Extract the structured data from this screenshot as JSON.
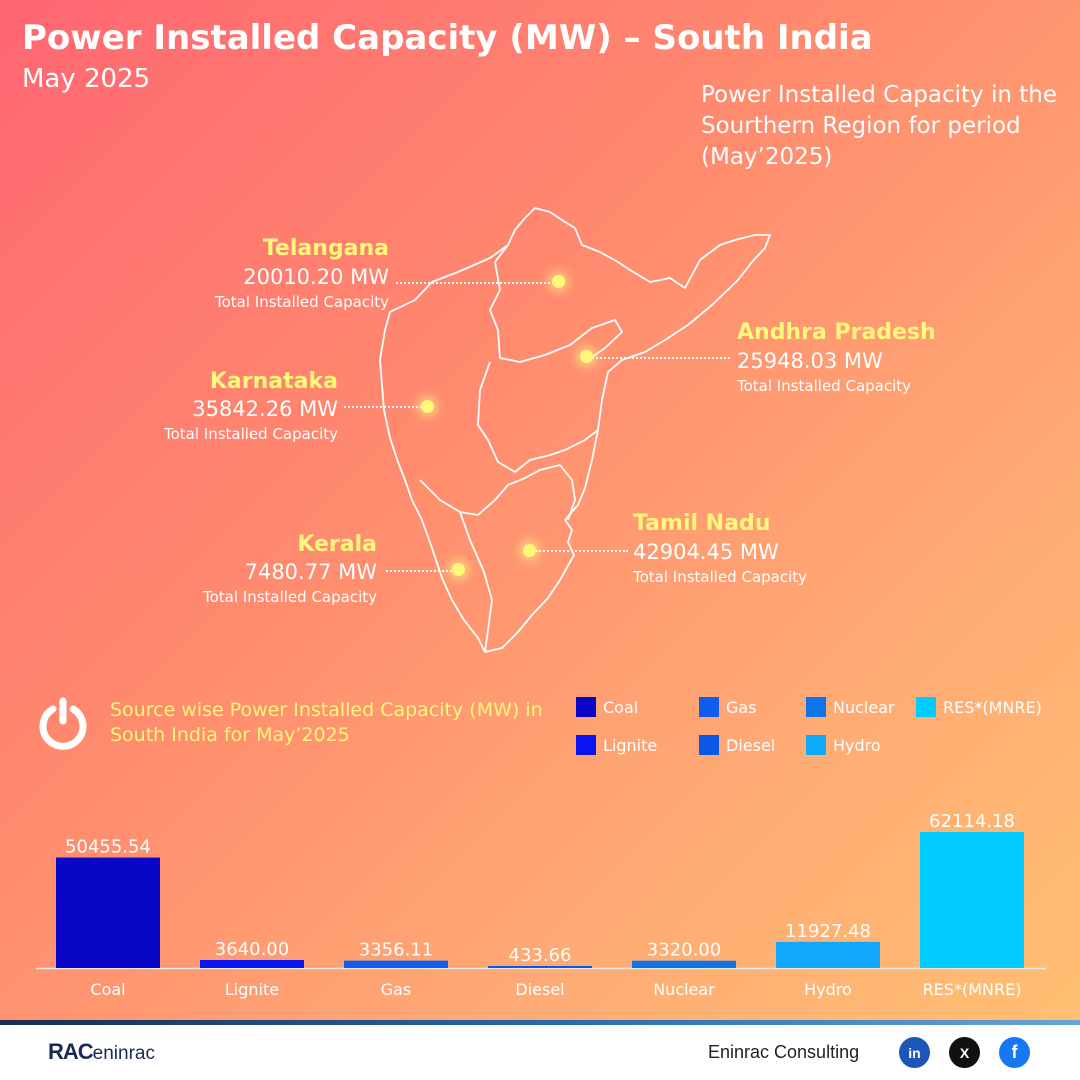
{
  "header": {
    "title": "Power Installed Capacity (MW) – South India",
    "subtitle": "May 2025",
    "region_note": "Power Installed Capacity in the Sourthern Region for period (May’2025)"
  },
  "states": {
    "telangana": {
      "name": "Telangana",
      "value": "20010.20 MW",
      "caption": "Total Installed Capacity"
    },
    "andhra": {
      "name": "Andhra Pradesh",
      "value": "25948.03 MW",
      "caption": "Total Installed Capacity"
    },
    "karnataka": {
      "name": "Karnataka",
      "value": "35842.26 MW",
      "caption": "Total Installed Capacity"
    },
    "tamilnadu": {
      "name": "Tamil Nadu",
      "value": "42904.45 MW",
      "caption": "Total Installed Capacity"
    },
    "kerala": {
      "name": "Kerala",
      "value": "7480.77 MW",
      "caption": "Total Installed Capacity"
    }
  },
  "source_section": {
    "title": "Source wise Power Installed Capacity (MW) in South India for May’2025",
    "icon": "power-icon"
  },
  "chart_data": {
    "type": "bar",
    "title": "Source wise Power Installed Capacity (MW) in South India for May’2025",
    "xlabel": "",
    "ylabel": "",
    "categories": [
      "Coal",
      "Lignite",
      "Gas",
      "Diesel",
      "Nuclear",
      "Hydro",
      "RES*(MNRE)"
    ],
    "values": [
      50455.54,
      3640.0,
      3356.11,
      433.66,
      3320.0,
      11927.48,
      62114.18
    ],
    "value_labels": [
      "50455.54",
      "3640.00",
      "3356.11",
      "433.66",
      "3320.00",
      "11927.48",
      "62114.18"
    ],
    "colors": [
      "#0a06c8",
      "#0a14f0",
      "#0e5cf0",
      "#0a58ea",
      "#0e74ec",
      "#0fa8fa",
      "#00ccff"
    ],
    "ylim": [
      0,
      62114.18
    ],
    "grid": false,
    "legend": [
      {
        "label": "Coal",
        "color": "#0a06c8"
      },
      {
        "label": "Gas",
        "color": "#0e5cf0"
      },
      {
        "label": "Nuclear",
        "color": "#0e74ec"
      },
      {
        "label": "RES*(MNRE)",
        "color": "#00ccff"
      },
      {
        "label": "Lignite",
        "color": "#0a14f0"
      },
      {
        "label": "Diesel",
        "color": "#0a58ea"
      },
      {
        "label": "Hydro",
        "color": "#0fa8fa"
      }
    ]
  },
  "footer": {
    "logo_text_1": "RAC",
    "logo_text_2": "eninrac",
    "brand": "Eninrac Consulting",
    "social": [
      {
        "icon": "linkedin-icon",
        "label": "in",
        "color": "#1d55b8"
      },
      {
        "icon": "x-icon",
        "label": "X",
        "color": "#111111"
      },
      {
        "icon": "facebook-icon",
        "label": "f",
        "color": "#1877f2"
      }
    ]
  }
}
